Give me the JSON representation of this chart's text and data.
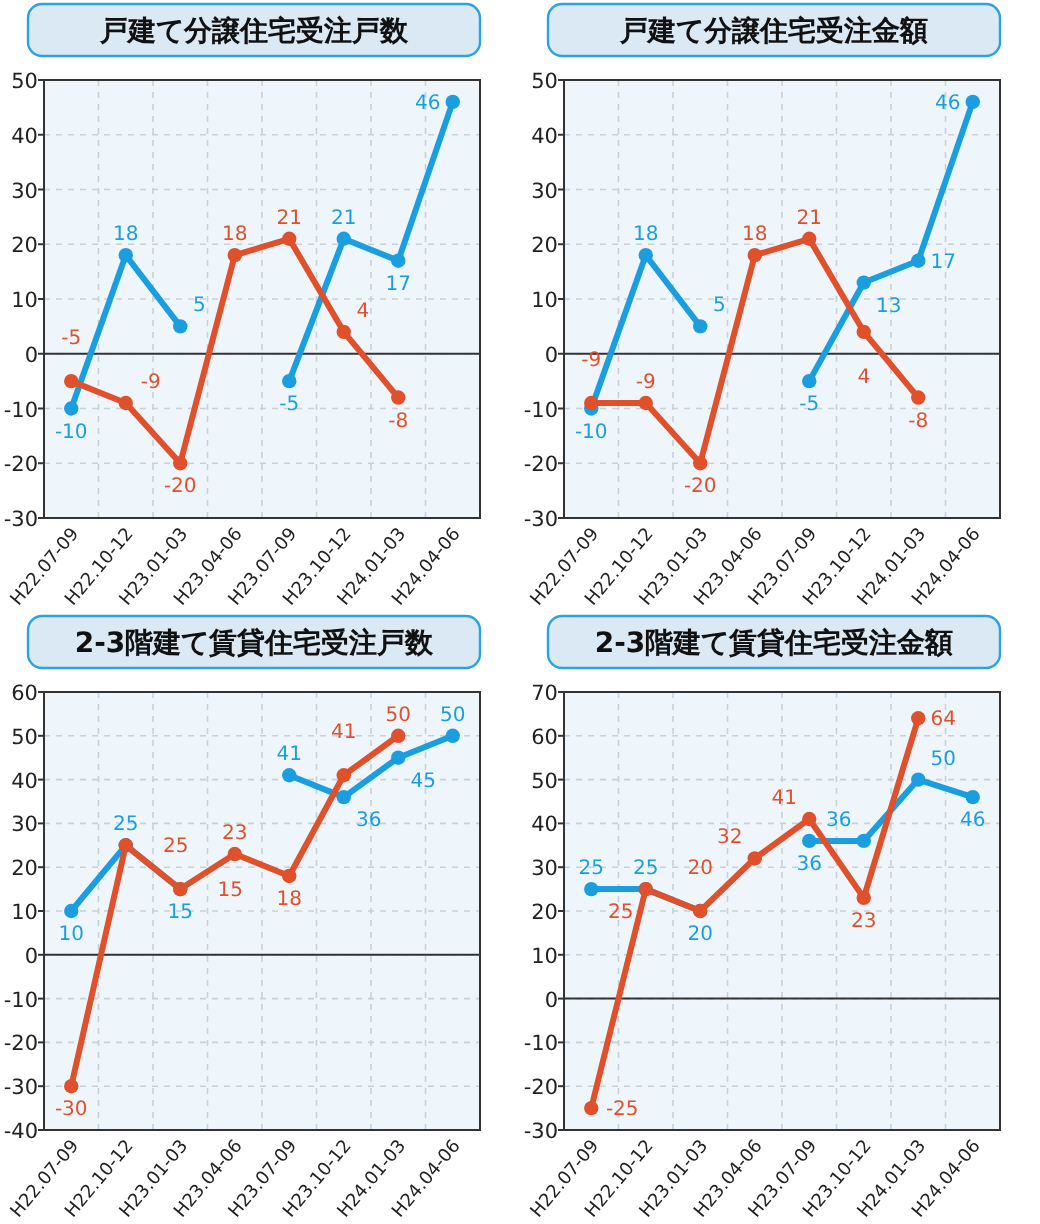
{
  "chart_data": [
    {
      "type": "line",
      "title": "戸建て分譲住宅受注戸数",
      "categories": [
        "H22.07-09",
        "H22.10-12",
        "H23.01-03",
        "H23.04-06",
        "H23.07-09",
        "H23.10-12",
        "H24.01-03",
        "H24.04-06"
      ],
      "ylim": [
        -30,
        50
      ],
      "yticks": [
        -30,
        -20,
        -10,
        0,
        10,
        20,
        30,
        40,
        50
      ],
      "grid": true,
      "marker": "circle",
      "data_labels": true,
      "series": [
        {
          "color": "#1a9ee0",
          "values": [
            -10,
            18,
            5,
            null,
            -5,
            21,
            17,
            46
          ]
        },
        {
          "color": "#e0502a",
          "values": [
            -5,
            -9,
            -20,
            18,
            21,
            4,
            -8,
            null
          ]
        }
      ]
    },
    {
      "type": "line",
      "title": "戸建て分譲住宅受注金額",
      "categories": [
        "H22.07-09",
        "H22.10-12",
        "H23.01-03",
        "H23.04-06",
        "H23.07-09",
        "H23.10-12",
        "H24.01-03",
        "H24.04-06"
      ],
      "ylim": [
        -30,
        50
      ],
      "yticks": [
        -30,
        -20,
        -10,
        0,
        10,
        20,
        30,
        40,
        50
      ],
      "grid": true,
      "marker": "circle",
      "data_labels": true,
      "series": [
        {
          "color": "#1a9ee0",
          "values": [
            -10,
            18,
            5,
            null,
            -5,
            13,
            17,
            46
          ]
        },
        {
          "color": "#e0502a",
          "values": [
            -9,
            -9,
            -20,
            18,
            21,
            4,
            -8,
            null
          ]
        }
      ]
    },
    {
      "type": "line",
      "title": "2-3階建て賃貸住宅受注戸数",
      "categories": [
        "H22.07-09",
        "H22.10-12",
        "H23.01-03",
        "H23.04-06",
        "H23.07-09",
        "H23.10-12",
        "H24.01-03",
        "H24.04-06"
      ],
      "ylim": [
        -40,
        60
      ],
      "yticks": [
        -40,
        -30,
        -20,
        -10,
        0,
        10,
        20,
        30,
        40,
        50,
        60
      ],
      "grid": true,
      "marker": "circle",
      "data_labels": true,
      "series": [
        {
          "color": "#1a9ee0",
          "values": [
            10,
            25,
            15,
            null,
            41,
            36,
            45,
            50
          ]
        },
        {
          "color": "#e0502a",
          "values": [
            -30,
            25,
            15,
            23,
            18,
            41,
            50,
            null
          ]
        }
      ]
    },
    {
      "type": "line",
      "title": "2-3階建て賃貸住宅受注金額",
      "categories": [
        "H22.07-09",
        "H22.10-12",
        "H23.01-03",
        "H23.04-06",
        "H23.07-09",
        "H23.10-12",
        "H24.01-03",
        "H24.04-06"
      ],
      "ylim": [
        -30,
        70
      ],
      "yticks": [
        -30,
        -20,
        -10,
        0,
        10,
        20,
        30,
        40,
        50,
        60,
        70
      ],
      "grid": true,
      "marker": "circle",
      "data_labels": true,
      "series": [
        {
          "color": "#1a9ee0",
          "values": [
            25,
            25,
            20,
            null,
            36,
            36,
            50,
            46
          ]
        },
        {
          "color": "#e0502a",
          "values": [
            -25,
            25,
            20,
            32,
            41,
            23,
            64,
            null
          ]
        }
      ]
    }
  ]
}
